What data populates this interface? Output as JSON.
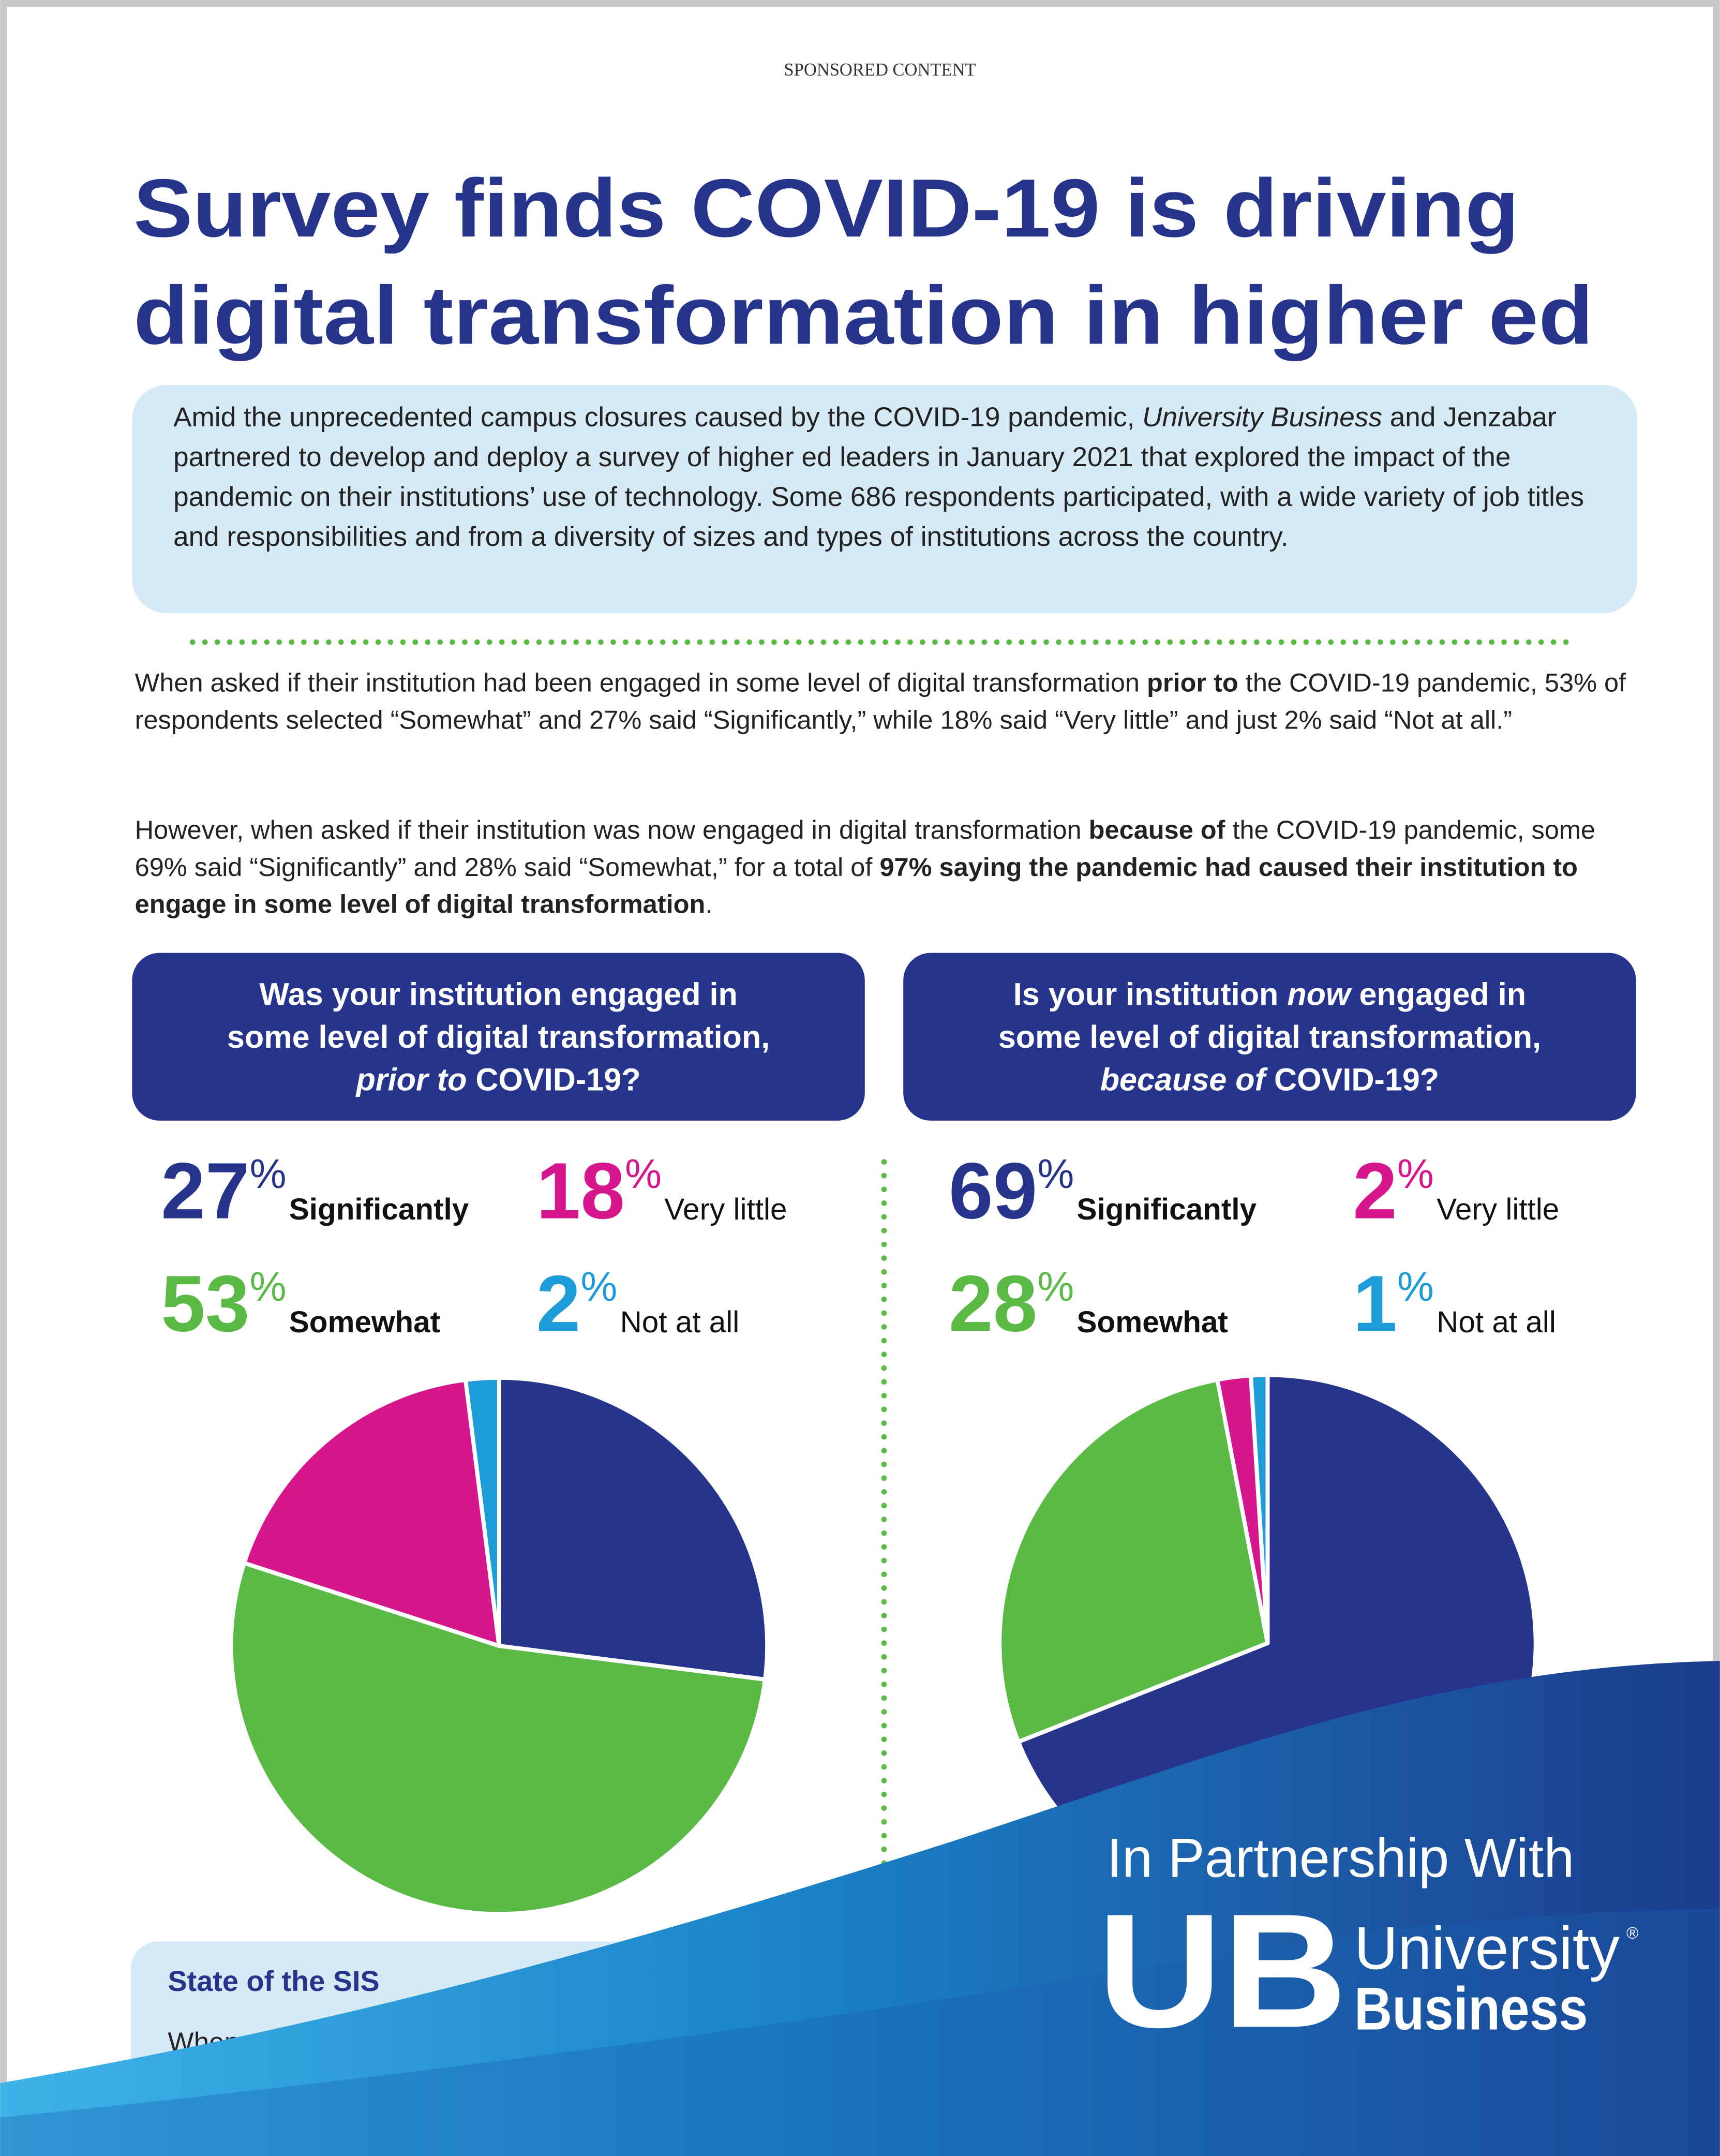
{
  "header": {
    "label": "SPONSORED CONTENT",
    "title": [
      "Survey finds COVID-19 is driving",
      "digital transformation in higher ed"
    ]
  },
  "intro": [
    {
      "text": "Amid the unprecedented campus closures caused by the COVID-19 pandemic, "
    },
    {
      "text": "University Business",
      "italic": true
    },
    {
      "text": " and Jenzabar partnered to develop and deploy a survey of higher ed leaders in January 2021 that explored the impact of the pandemic on their institutions’ use of technology. Some 686 respondents participated, with a wide variety of job titles and responsibilities and from a diversity of sizes and types of institutions across the country."
    }
  ],
  "paragraphs": [
    [
      {
        "text": "When asked if their institution had been engaged in some level of digital transformation "
      },
      {
        "text": "prior to",
        "bold": true
      },
      {
        "text": " the COVID-19 pandemic, 53% of respondents selected “Somewhat” and 27% said “Significantly,” while 18% said “Very little” and just 2% said “Not at all.”"
      }
    ],
    [
      {
        "text": "However, when asked if their institution was now engaged in digital transformation "
      },
      {
        "text": "because of",
        "bold": true
      },
      {
        "text": " the COVID-19 pandemic, some 69% said “Significantly” and 28% said “Somewhat,” for a total of "
      },
      {
        "text": "97% saying the pandemic had caused their institution to engage in some level of digital transformation",
        "bold": true
      },
      {
        "text": "."
      }
    ]
  ],
  "charts": [
    {
      "type": "pie",
      "question": [
        [
          {
            "text": "Was your institution engaged in"
          }
        ],
        [
          {
            "text": "some level of digital transformation,"
          }
        ],
        [
          {
            "text": "prior to",
            "italic": true
          },
          {
            "text": " COVID-19?"
          }
        ]
      ],
      "categories": [
        "Significantly",
        "Somewhat",
        "Very little",
        "Not at all"
      ],
      "values": [
        27,
        53,
        18,
        2
      ],
      "value_labels": [
        "27%",
        "53%",
        "18%",
        "2%"
      ],
      "colors": [
        "#27348b",
        "#5bb946",
        "#d5168c",
        "#1e9cd7"
      ]
    },
    {
      "type": "pie",
      "question": [
        [
          {
            "text": "Is your institution "
          },
          {
            "text": "now",
            "italic": true
          },
          {
            "text": " engaged in"
          }
        ],
        [
          {
            "text": "some level of digital transformation,"
          }
        ],
        [
          {
            "text": "because of",
            "italic": true
          },
          {
            "text": " COVID-19?"
          }
        ]
      ],
      "categories": [
        "Significantly",
        "Somewhat",
        "Very little",
        "Not at all"
      ],
      "values": [
        69,
        28,
        2,
        1
      ],
      "value_labels": [
        "69%",
        "28%",
        "2%",
        "1%"
      ],
      "colors": [
        "#27348b",
        "#5bb946",
        "#d5168c",
        "#1e9cd7"
      ]
    }
  ],
  "sidebar": {
    "title": "State of the SIS",
    "text": "When asked if th"
  },
  "footer": {
    "tagline": "In Partnership With",
    "logo": "UB",
    "brand": [
      "University",
      "Business"
    ],
    "mark": "®"
  }
}
